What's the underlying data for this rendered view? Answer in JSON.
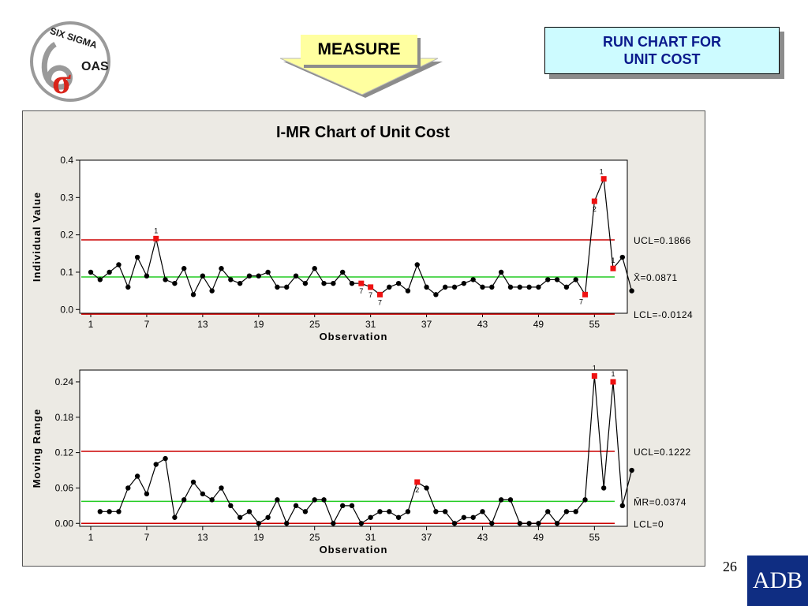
{
  "logo": {
    "line1": "SIX SIGMA",
    "line2": "OAS",
    "symbol": "σ"
  },
  "measure_label": "MEASURE",
  "slide_title": {
    "line1": "RUN CHART FOR",
    "line2": "UNIT COST"
  },
  "page_number": "26",
  "footer_logo": "ADB",
  "colors": {
    "data_line": "#000000",
    "center_line": "#22cc22",
    "limit_line": "#cc0000",
    "flag_point": "#ee1111",
    "panel_bg": "#eceae4",
    "title_box_bg": "#cdfbff",
    "title_text": "#0a1a8c",
    "arrow_fill": "#ffffa0",
    "adb_bg": "#0f2d82"
  },
  "chart_data": [
    {
      "type": "line",
      "title": "I-MR Chart of Unit Cost",
      "xlabel": "Observation",
      "ylabel": "Individual Value",
      "xlim": [
        1,
        57
      ],
      "ylim": [
        -0.01,
        0.4
      ],
      "xticks": [
        "1",
        "7",
        "13",
        "19",
        "25",
        "31",
        "37",
        "43",
        "49",
        "55"
      ],
      "yticks": [
        "0.0",
        "0.1",
        "0.2",
        "0.3",
        "0.4"
      ],
      "ytick_values": [
        0.0,
        0.1,
        0.2,
        0.3,
        0.4
      ],
      "grid": false,
      "series": [
        {
          "values": [
            0.1,
            0.08,
            0.1,
            0.12,
            0.06,
            0.14,
            0.09,
            0.19,
            0.08,
            0.07,
            0.11,
            0.04,
            0.09,
            0.05,
            0.11,
            0.08,
            0.07,
            0.09,
            0.09,
            0.1,
            0.06,
            0.06,
            0.09,
            0.07,
            0.11,
            0.07,
            0.07,
            0.1,
            0.07,
            0.07,
            0.06,
            0.04,
            0.06,
            0.07,
            0.05,
            0.12,
            0.06,
            0.04,
            0.06,
            0.06,
            0.07,
            0.08,
            0.06,
            0.06,
            0.1,
            0.06,
            0.06,
            0.06,
            0.06,
            0.08,
            0.08,
            0.06,
            0.08,
            0.04,
            0.29,
            0.35,
            0.11,
            0.14,
            0.05
          ]
        }
      ],
      "limits": [
        {
          "label": "UCL=0.1866",
          "value": 0.1866,
          "kind": "limit"
        },
        {
          "label": "X̄=0.0871",
          "value": 0.0871,
          "kind": "center"
        },
        {
          "label": "LCL=-0.0124",
          "value": -0.0124,
          "kind": "limit"
        }
      ],
      "flagged_points": [
        {
          "x": 8,
          "label": "1",
          "pos": "above"
        },
        {
          "x": 30,
          "label": "7",
          "pos": "below"
        },
        {
          "x": 31,
          "label": "7",
          "pos": "below"
        },
        {
          "x": 32,
          "label": "7",
          "pos": "below"
        },
        {
          "x": 54,
          "label": "7",
          "pos": "below-left"
        },
        {
          "x": 55,
          "label": "2",
          "pos": "below"
        },
        {
          "x": 56,
          "label": "1",
          "pos": "above-left"
        },
        {
          "x": 57,
          "label": "1",
          "pos": "above"
        }
      ]
    },
    {
      "type": "line",
      "title": "",
      "xlabel": "Observation",
      "ylabel": "Moving Range",
      "xlim": [
        1,
        57
      ],
      "ylim": [
        -0.005,
        0.26
      ],
      "xticks": [
        "1",
        "7",
        "13",
        "19",
        "25",
        "31",
        "37",
        "43",
        "49",
        "55"
      ],
      "yticks": [
        "0.00",
        "0.06",
        "0.12",
        "0.18",
        "0.24"
      ],
      "ytick_values": [
        0.0,
        0.06,
        0.12,
        0.18,
        0.24
      ],
      "grid": false,
      "x_start": 2,
      "series": [
        {
          "values": [
            0.02,
            0.02,
            0.02,
            0.06,
            0.08,
            0.05,
            0.1,
            0.11,
            0.01,
            0.04,
            0.07,
            0.05,
            0.04,
            0.06,
            0.03,
            0.01,
            0.02,
            0.0,
            0.01,
            0.04,
            0.0,
            0.03,
            0.02,
            0.04,
            0.04,
            0.0,
            0.03,
            0.03,
            0.0,
            0.01,
            0.02,
            0.02,
            0.01,
            0.02,
            0.07,
            0.06,
            0.02,
            0.02,
            0.0,
            0.01,
            0.01,
            0.02,
            0.0,
            0.04,
            0.04,
            0.0,
            0.0,
            0.0,
            0.02,
            0.0,
            0.02,
            0.02,
            0.04,
            0.25,
            0.06,
            0.24,
            0.03,
            0.09
          ]
        }
      ],
      "limits": [
        {
          "label": "UCL=0.1222",
          "value": 0.1222,
          "kind": "limit"
        },
        {
          "label": "M̄R=0.0374",
          "value": 0.0374,
          "kind": "center"
        },
        {
          "label": "LCL=0",
          "value": 0.0,
          "kind": "limit"
        }
      ],
      "flagged_points": [
        {
          "x": 36,
          "label": "2",
          "pos": "below"
        },
        {
          "x": 55,
          "label": "1",
          "pos": "above"
        },
        {
          "x": 57,
          "label": "1",
          "pos": "above"
        }
      ]
    }
  ]
}
